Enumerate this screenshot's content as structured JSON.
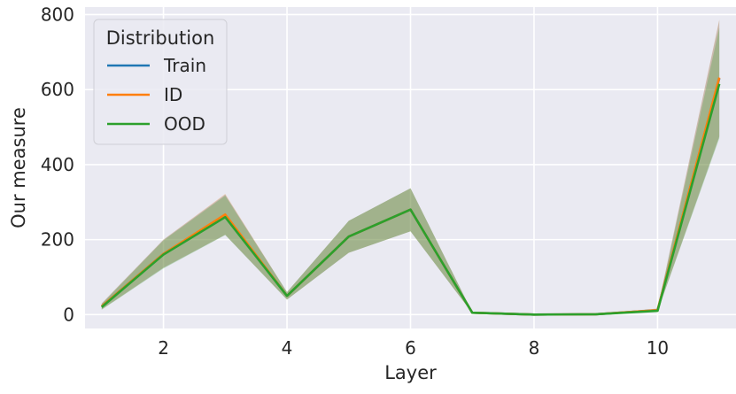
{
  "chart_data": {
    "type": "line",
    "title": "",
    "xlabel": "Layer",
    "ylabel": "Our measure",
    "xlim": [
      0.73,
      11.27
    ],
    "ylim": [
      -37,
      820
    ],
    "xticks": [
      2,
      4,
      6,
      8,
      10
    ],
    "yticks": [
      0,
      200,
      400,
      600,
      800
    ],
    "grid": true,
    "background": "#eaeaf2",
    "legend": {
      "title": "Distribution",
      "placement": "top-left"
    },
    "x": [
      1,
      2,
      3,
      4,
      5,
      6,
      7,
      8,
      9,
      10,
      11
    ],
    "series": [
      {
        "name": "Train",
        "color": "#1f77b4",
        "values": [
          22,
          162,
          265,
          50,
          208,
          280,
          5,
          0,
          1,
          12,
          630
        ],
        "band_low": [
          14,
          125,
          213,
          40,
          165,
          222,
          4,
          0,
          0,
          9,
          475
        ],
        "band_high": [
          30,
          200,
          320,
          60,
          250,
          337,
          6,
          0,
          2,
          16,
          785
        ]
      },
      {
        "name": "ID",
        "color": "#ff7f0e",
        "values": [
          22,
          162,
          267,
          50,
          208,
          280,
          5,
          0,
          1,
          12,
          632
        ],
        "band_low": [
          14,
          125,
          213,
          40,
          165,
          222,
          4,
          0,
          0,
          9,
          475
        ],
        "band_high": [
          30,
          200,
          322,
          60,
          250,
          337,
          6,
          0,
          2,
          16,
          787
        ]
      },
      {
        "name": "OOD",
        "color": "#2ca02c",
        "values": [
          20,
          160,
          260,
          50,
          208,
          280,
          5,
          0,
          1,
          10,
          615
        ],
        "band_low": [
          13,
          123,
          212,
          40,
          165,
          222,
          4,
          0,
          0,
          8,
          470
        ],
        "band_high": [
          28,
          198,
          317,
          60,
          250,
          337,
          6,
          0,
          2,
          14,
          765
        ]
      }
    ]
  }
}
